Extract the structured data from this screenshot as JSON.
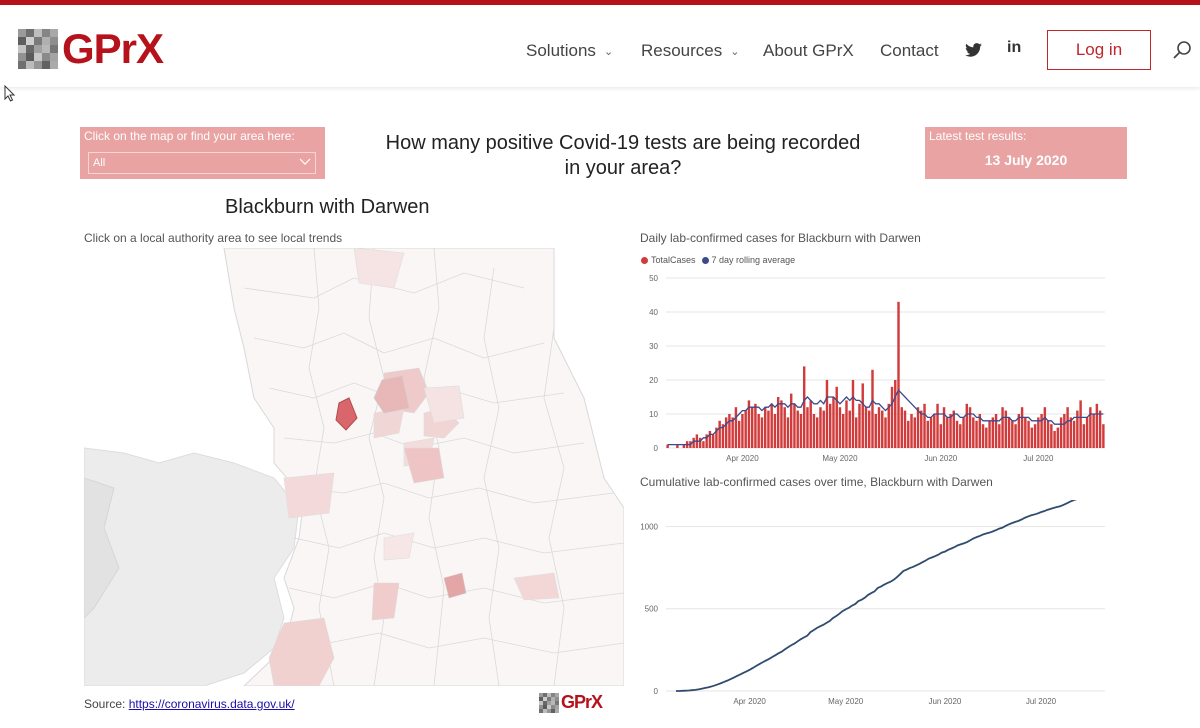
{
  "brand": {
    "name": "GPrX",
    "color": "#b5121b"
  },
  "nav": {
    "solutions": "Solutions",
    "resources": "Resources",
    "about": "About GPrX",
    "contact": "Contact",
    "twitter_icon": "twitter-icon",
    "linkedin_label": "in",
    "login": "Log in",
    "search_icon": "search-icon"
  },
  "filter": {
    "label": "Click on the map or find your area here:",
    "value": "All"
  },
  "page_title": "How many positive Covid-19 tests are being recorded in your area?",
  "latest": {
    "label": "Latest test results:",
    "date": "13 July 2020"
  },
  "area_name": "Blackburn with Darwen",
  "map": {
    "caption": "Click on a local authority area to see local trends",
    "highlight_color": "#d9666b"
  },
  "source": {
    "label": "Source:",
    "url": "https://coronavirus.data.gov.uk/"
  },
  "chart_data": [
    {
      "type": "bar",
      "title": "Daily lab-confirmed cases for Blackburn with Darwen",
      "xlabel": "",
      "ylabel": "",
      "ylim": [
        0,
        50
      ],
      "yticks": [
        0,
        10,
        20,
        30,
        40,
        50
      ],
      "x_start": "2020-03-09",
      "xtick_labels": [
        "Apr 2020",
        "May 2020",
        "Jun 2020",
        "Jul 2020"
      ],
      "legend": "top-left",
      "grid": true,
      "series": [
        {
          "name": "TotalCases",
          "color": "#d13b3b",
          "values": [
            1,
            0,
            0,
            1,
            0,
            1,
            2,
            2,
            3,
            4,
            3,
            2,
            4,
            5,
            4,
            6,
            8,
            7,
            9,
            10,
            9,
            12,
            8,
            10,
            11,
            14,
            12,
            13,
            10,
            9,
            12,
            11,
            13,
            10,
            15,
            14,
            12,
            9,
            16,
            13,
            11,
            10,
            24,
            12,
            14,
            10,
            9,
            12,
            11,
            20,
            13,
            15,
            18,
            12,
            10,
            14,
            11,
            20,
            9,
            13,
            19,
            12,
            11,
            23,
            10,
            12,
            11,
            9,
            13,
            18,
            20,
            43,
            12,
            11,
            8,
            10,
            9,
            12,
            11,
            13,
            8,
            9,
            10,
            13,
            7,
            12,
            9,
            10,
            11,
            8,
            7,
            9,
            13,
            12,
            9,
            8,
            10,
            7,
            6,
            8,
            9,
            10,
            7,
            12,
            11,
            9,
            8,
            7,
            10,
            12,
            9,
            8,
            6,
            7,
            9,
            10,
            12,
            8,
            7,
            5,
            6,
            9,
            10,
            12,
            9,
            8,
            11,
            14,
            7,
            9,
            12,
            10,
            13,
            11,
            7
          ]
        },
        {
          "name": "7 day rolling average",
          "color": "#3c4a8c",
          "values": [
            1,
            1,
            1,
            1,
            1,
            1,
            1,
            1,
            2,
            2,
            2,
            3,
            3,
            4,
            4,
            5,
            6,
            6,
            7,
            8,
            8,
            9,
            10,
            11,
            11,
            12,
            12,
            12,
            12,
            11,
            12,
            12,
            13,
            12,
            13,
            13,
            13,
            12,
            13,
            13,
            12,
            12,
            14,
            15,
            14,
            13,
            13,
            14,
            13,
            15,
            15,
            15,
            14,
            13,
            14,
            15,
            14,
            15,
            14,
            14,
            13,
            12,
            12,
            14,
            13,
            13,
            12,
            11,
            12,
            13,
            15,
            17,
            16,
            15,
            14,
            13,
            12,
            11,
            10,
            10,
            9,
            9,
            10,
            10,
            10,
            10,
            9,
            9,
            10,
            10,
            9,
            9,
            10,
            10,
            10,
            9,
            9,
            8,
            8,
            8,
            8,
            8,
            8,
            9,
            9,
            9,
            8,
            8,
            9,
            9,
            9,
            9,
            8,
            8,
            8,
            8,
            9,
            8,
            8,
            7,
            7,
            7,
            7,
            8,
            8,
            9,
            9,
            9,
            9,
            9,
            10,
            10,
            10,
            10,
            10
          ]
        }
      ]
    },
    {
      "type": "line",
      "title": "Cumulative lab-confirmed cases over time, Blackburn with Darwen",
      "xlabel": "",
      "ylabel": "",
      "ylim": [
        0,
        1100
      ],
      "yticks": [
        0,
        500,
        1000
      ],
      "x_start": "2020-03-09",
      "xtick_labels": [
        "Apr 2020",
        "May 2020",
        "Jun 2020",
        "Jul 2020"
      ],
      "grid": true,
      "series": [
        {
          "name": "",
          "color": "#2f4c6e",
          "values": [
            0,
            0,
            1,
            2,
            3,
            5,
            7,
            10,
            14,
            18,
            22,
            27,
            33,
            40,
            47,
            55,
            63,
            72,
            81,
            91,
            100,
            110,
            119,
            129,
            140,
            152,
            163,
            174,
            184,
            194,
            206,
            217,
            229,
            239,
            253,
            266,
            278,
            288,
            302,
            315,
            326,
            336,
            358,
            370,
            383,
            393,
            402,
            414,
            425,
            443,
            455,
            469,
            485,
            496,
            506,
            519,
            529,
            547,
            555,
            567,
            584,
            595,
            605,
            626,
            635,
            646,
            656,
            664,
            676,
            692,
            710,
            729,
            737,
            747,
            754,
            763,
            772,
            783,
            793,
            805,
            812,
            820,
            829,
            841,
            847,
            858,
            866,
            875,
            885,
            892,
            898,
            906,
            917,
            928,
            936,
            943,
            952,
            958,
            963,
            970,
            978,
            987,
            993,
            1004,
            1013,
            1021,
            1028,
            1034,
            1043,
            1053,
            1061,
            1068,
            1073,
            1079,
            1087,
            1093,
            1101,
            1107,
            1113,
            1118,
            1123,
            1131,
            1140,
            1150,
            1158,
            1165,
            1175,
            1187,
            1193,
            1201,
            1212,
            1221,
            1233,
            1243,
            1250
          ]
        }
      ]
    }
  ]
}
